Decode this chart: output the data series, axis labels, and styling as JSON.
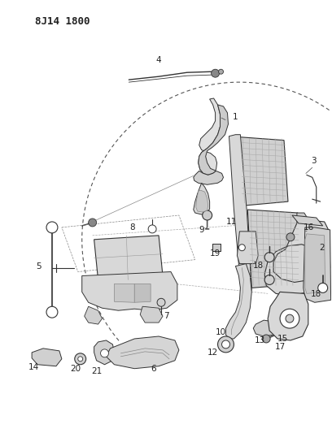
{
  "title": "8J14 1800",
  "bg_color": "#ffffff",
  "lc": "#333333",
  "lw": 0.7,
  "fig_width": 4.08,
  "fig_height": 5.33,
  "dpi": 100
}
